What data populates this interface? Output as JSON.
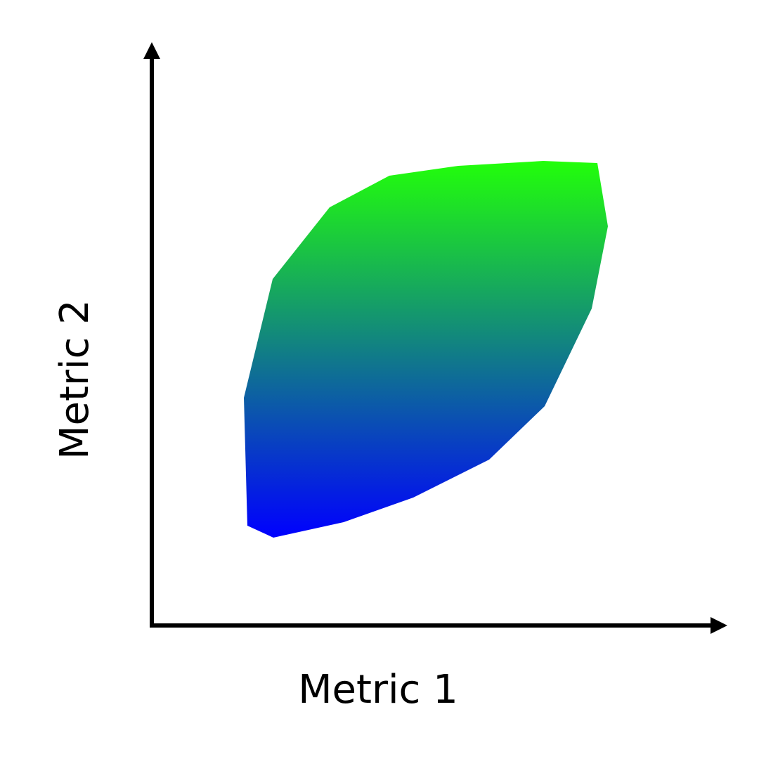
{
  "axes": {
    "x_label": "Metric 1",
    "y_label": "Metric 2"
  },
  "region": {
    "gradient_top_color": "#22ff0a",
    "gradient_bottom_color": "#0000ff"
  },
  "colors": {
    "axis": "#000000",
    "background": "#ffffff"
  }
}
